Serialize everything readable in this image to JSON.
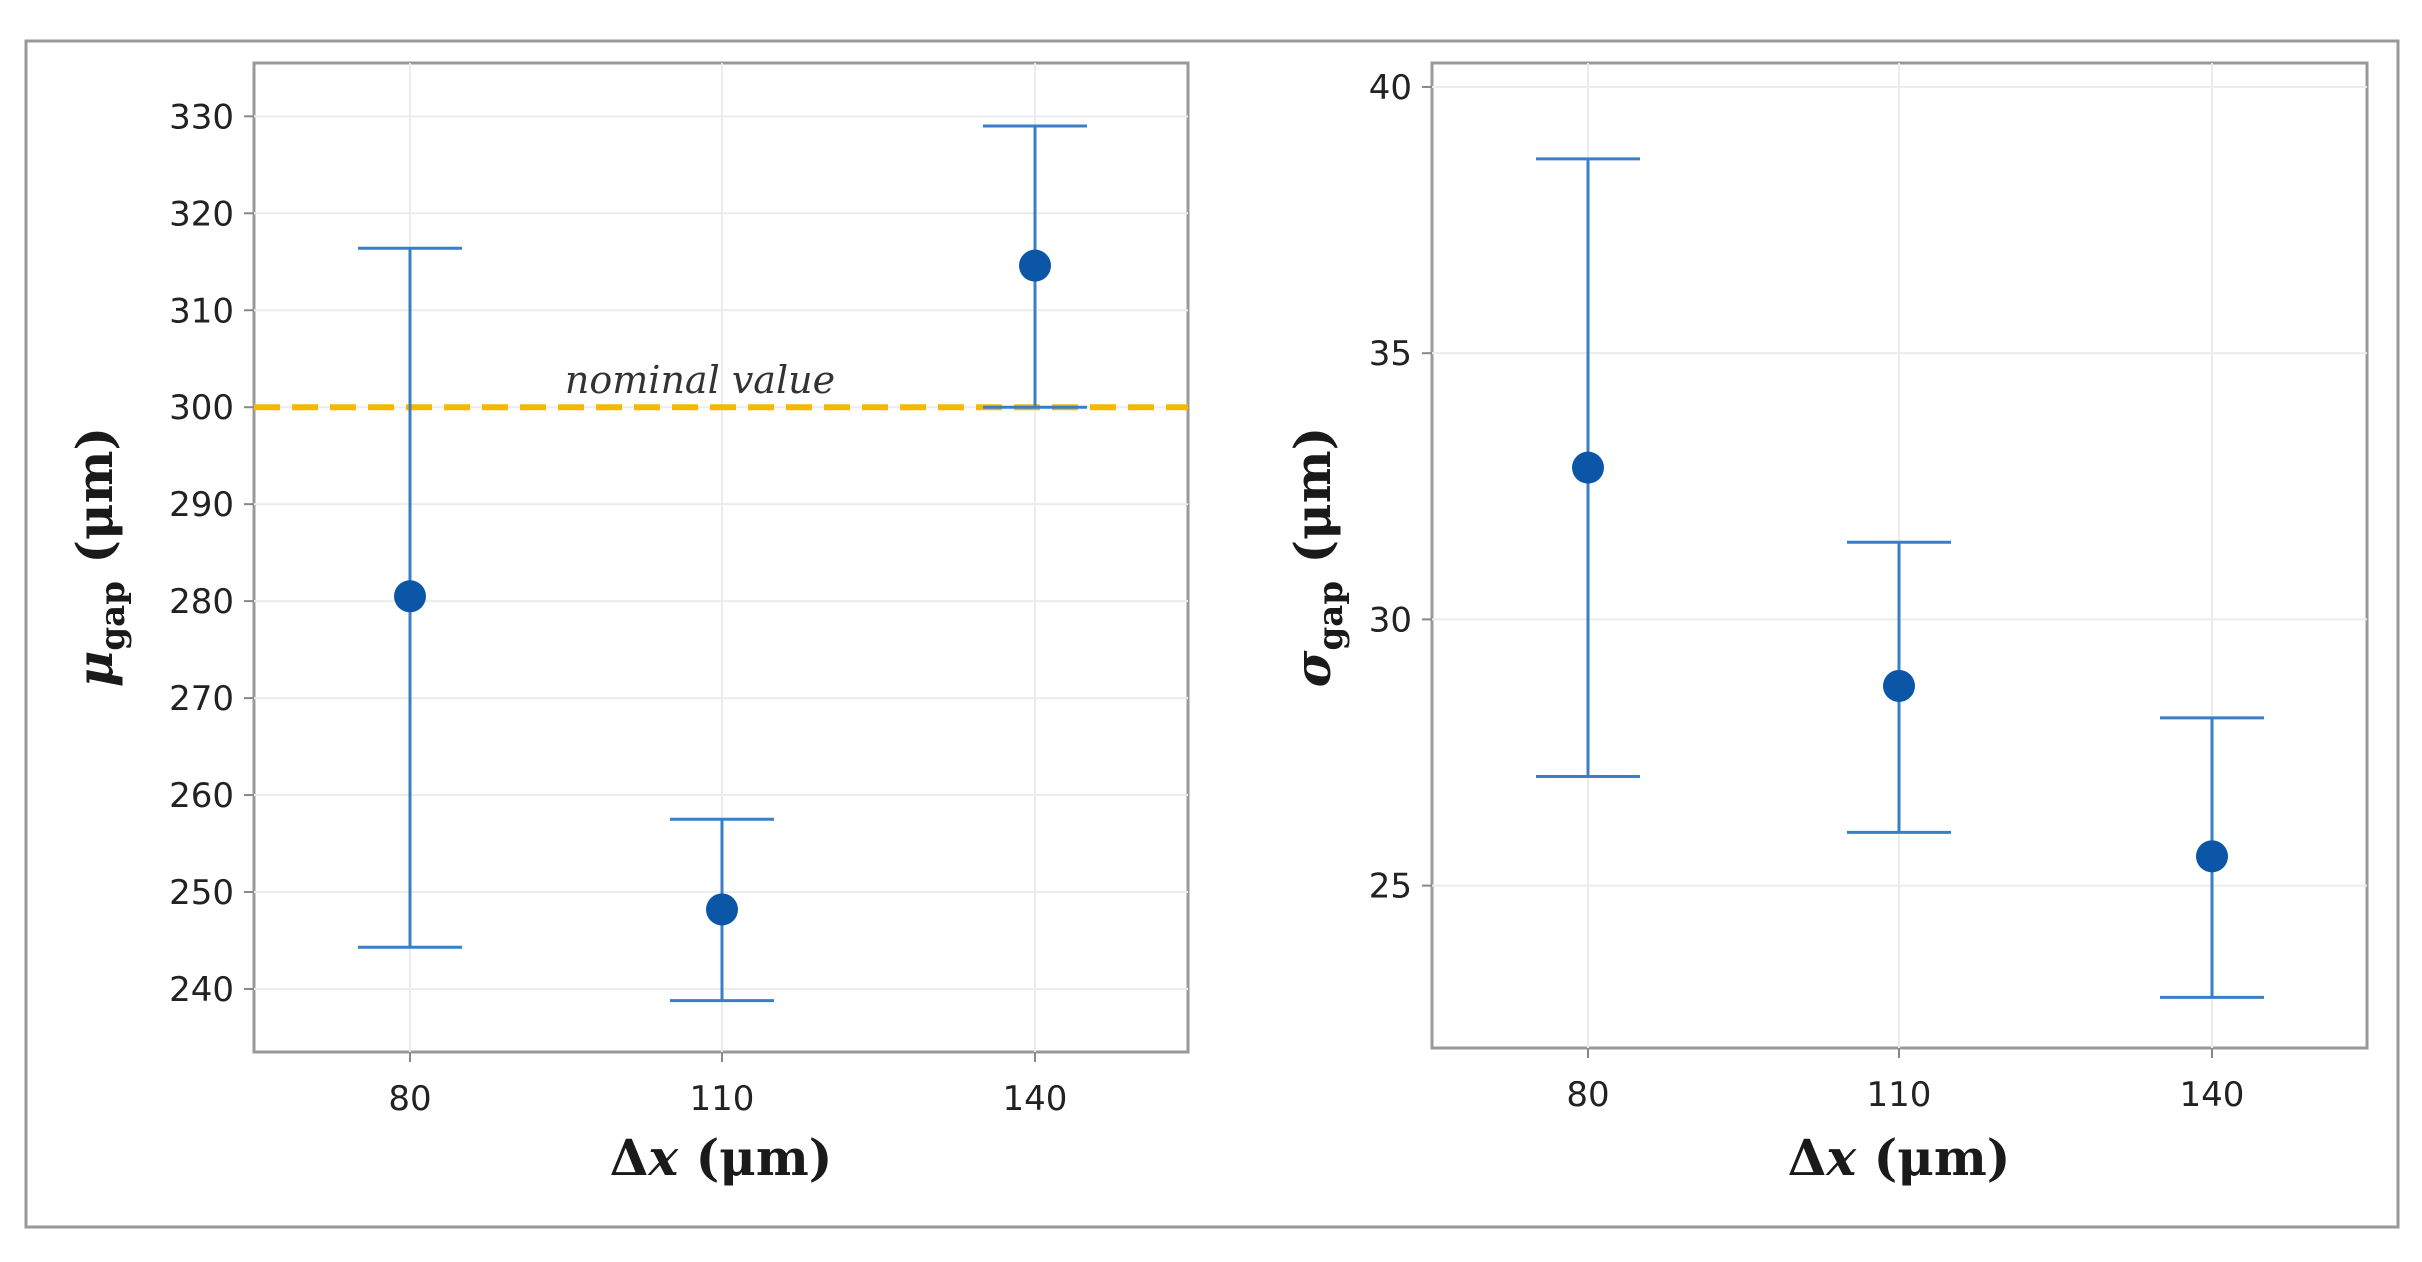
{
  "chart_data": [
    {
      "type": "errorbar",
      "title": "",
      "xlabel": "Δx (μm)",
      "xlabel_symbol": "Δ",
      "xlabel_var": "x",
      "xlabel_unit": " (μm)",
      "ylabel_symbol": "μ",
      "ylabel_sub": "gap",
      "ylabel_unit": " (μm)",
      "categories": [
        "80",
        "110",
        "140"
      ],
      "mean": [
        280.5,
        248.2,
        314.6
      ],
      "lower": [
        244.3,
        238.8,
        300.0
      ],
      "upper": [
        316.4,
        257.5,
        329.0
      ],
      "ylim": [
        233.5,
        335.5
      ],
      "yticks": [
        240,
        250,
        260,
        270,
        280,
        290,
        300,
        310,
        320,
        330
      ],
      "reference_line": {
        "value": 300,
        "label": "nominal value",
        "color": "#f5b800"
      },
      "grid": true,
      "color": "#0b56a6",
      "bar_color": "#3a7ec8"
    },
    {
      "type": "errorbar",
      "title": "",
      "xlabel": "Δx (μm)",
      "xlabel_symbol": "Δ",
      "xlabel_var": "x",
      "xlabel_unit": " (μm)",
      "ylabel_symbol": "σ",
      "ylabel_sub": "gap",
      "ylabel_unit": " (μm)",
      "categories": [
        "80",
        "110",
        "140"
      ],
      "mean": [
        32.85,
        28.75,
        25.55
      ],
      "lower": [
        27.05,
        26.0,
        22.9
      ],
      "upper": [
        38.65,
        31.45,
        28.15
      ],
      "ylim": [
        21.95,
        40.45
      ],
      "yticks": [
        25,
        30,
        35,
        40
      ],
      "grid": true,
      "color": "#0b56a6",
      "bar_color": "#3a7ec8"
    }
  ]
}
